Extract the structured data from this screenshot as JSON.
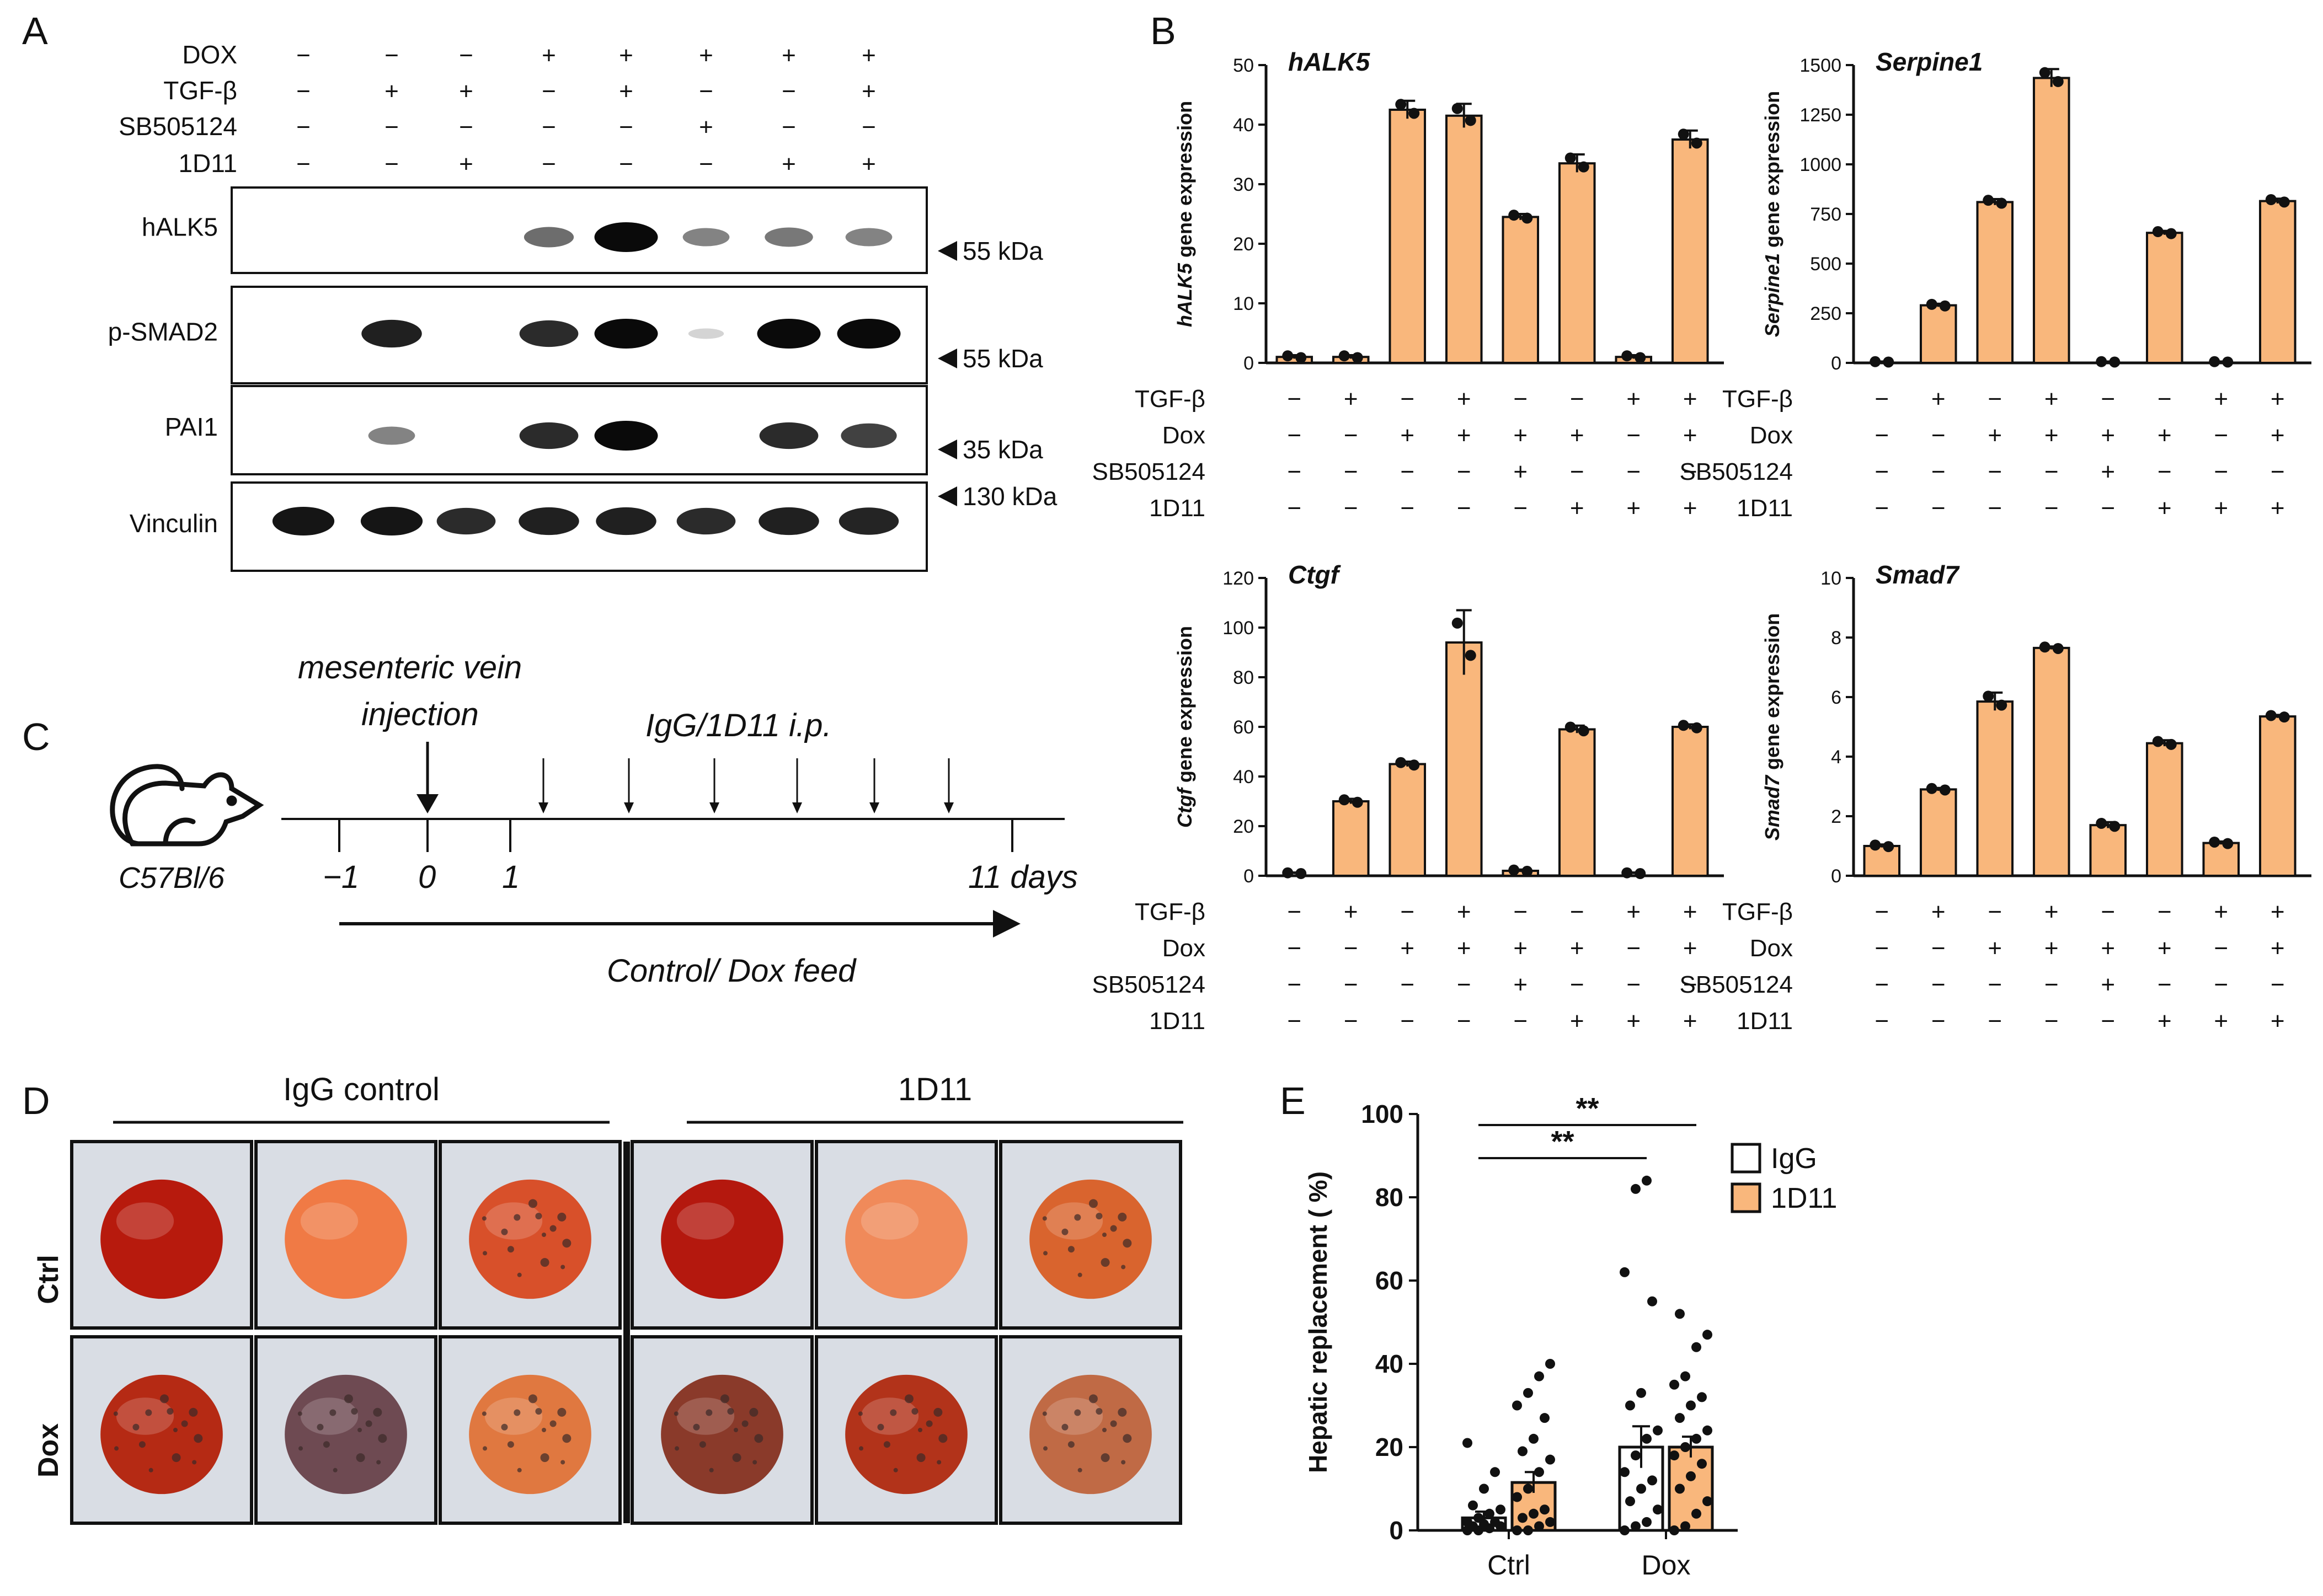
{
  "panels": {
    "A": "A",
    "B": "B",
    "C": "C",
    "D": "D",
    "E": "E"
  },
  "western": {
    "conditions": [
      {
        "name": "DOX",
        "values": [
          "−",
          "−",
          "−",
          "+",
          "+",
          "+",
          "+",
          "+"
        ]
      },
      {
        "name": "TGF-β",
        "values": [
          "−",
          "+",
          "+",
          "−",
          "+",
          "−",
          "−",
          "+"
        ]
      },
      {
        "name": "SB505124",
        "values": [
          "−",
          "−",
          "−",
          "−",
          "−",
          "+",
          "−",
          "−"
        ]
      },
      {
        "name": "1D11",
        "values": [
          "−",
          "−",
          "+",
          "−",
          "−",
          "−",
          "+",
          "+"
        ]
      }
    ],
    "blots": [
      {
        "name": "hALK5",
        "marker": "55 kDa",
        "intensity": [
          0,
          0,
          0,
          0.55,
          1,
          0.45,
          0.5,
          0.45
        ]
      },
      {
        "name": "p-SMAD2",
        "marker": "55 kDa",
        "intensity": [
          0,
          0.9,
          0,
          0.85,
          1,
          0.08,
          1,
          1
        ]
      },
      {
        "name": "PAI1",
        "marker": "35 kDa",
        "intensity": [
          0,
          0.45,
          0,
          0.85,
          1,
          0,
          0.85,
          0.75
        ]
      },
      {
        "name": "Vinculin",
        "marker": "130 kDa",
        "intensity": [
          0.95,
          0.95,
          0.85,
          0.9,
          0.9,
          0.85,
          0.9,
          0.88
        ]
      }
    ]
  },
  "chart_data": [
    {
      "type": "bar",
      "title": "hALK5",
      "ylabel_italic": "hALK5",
      "ylabel_rest": " gene expression",
      "ylim": [
        0,
        50
      ],
      "yticks": [
        0,
        10,
        20,
        30,
        40,
        50
      ],
      "values": [
        1,
        1,
        42.5,
        41.5,
        24.5,
        33.5,
        1,
        37.5
      ],
      "errors": [
        0.3,
        0.3,
        1.5,
        2,
        0.5,
        1.5,
        0.3,
        1.5
      ],
      "conditions": [
        {
          "name": "TGF-β",
          "values": [
            "−",
            "+",
            "−",
            "+",
            "−",
            "−",
            "+",
            "+"
          ]
        },
        {
          "name": "Dox",
          "values": [
            "−",
            "−",
            "+",
            "+",
            "+",
            "+",
            "−",
            "+"
          ]
        },
        {
          "name": "SB505124",
          "values": [
            "−",
            "−",
            "−",
            "−",
            "+",
            "−",
            "−",
            "−"
          ]
        },
        {
          "name": "1D11",
          "values": [
            "−",
            "−",
            "−",
            "−",
            "−",
            "+",
            "+",
            "+"
          ]
        }
      ]
    },
    {
      "type": "bar",
      "title": "Serpine1",
      "ylabel_italic": "Serpine1",
      "ylabel_rest": " gene expression",
      "ylim": [
        0,
        1500
      ],
      "yticks": [
        0,
        250,
        500,
        750,
        1000,
        1250,
        1500
      ],
      "values": [
        5,
        290,
        810,
        1435,
        5,
        655,
        5,
        815
      ],
      "errors": [
        2,
        8,
        15,
        45,
        2,
        10,
        2,
        12
      ],
      "conditions": [
        {
          "name": "TGF-β",
          "values": [
            "−",
            "+",
            "−",
            "+",
            "−",
            "−",
            "+",
            "+"
          ]
        },
        {
          "name": "Dox",
          "values": [
            "−",
            "−",
            "+",
            "+",
            "+",
            "+",
            "−",
            "+"
          ]
        },
        {
          "name": "SB505124",
          "values": [
            "−",
            "−",
            "−",
            "−",
            "+",
            "−",
            "−",
            "−"
          ]
        },
        {
          "name": "1D11",
          "values": [
            "−",
            "−",
            "−",
            "−",
            "−",
            "+",
            "+",
            "+"
          ]
        }
      ]
    },
    {
      "type": "bar",
      "title": "Ctgf",
      "ylabel_italic": "Ctgf",
      "ylabel_rest": " gene expression",
      "ylim": [
        0,
        120
      ],
      "yticks": [
        0,
        20,
        40,
        60,
        80,
        100,
        120
      ],
      "values": [
        1,
        30,
        45,
        94,
        2,
        59,
        1,
        60
      ],
      "errors": [
        0.3,
        1,
        1,
        13,
        0.5,
        1.5,
        0.3,
        1
      ],
      "conditions": [
        {
          "name": "TGF-β",
          "values": [
            "−",
            "+",
            "−",
            "+",
            "−",
            "−",
            "+",
            "+"
          ]
        },
        {
          "name": "Dox",
          "values": [
            "−",
            "−",
            "+",
            "+",
            "+",
            "+",
            "−",
            "+"
          ]
        },
        {
          "name": "SB505124",
          "values": [
            "−",
            "−",
            "−",
            "−",
            "+",
            "−",
            "−",
            "−"
          ]
        },
        {
          "name": "1D11",
          "values": [
            "−",
            "−",
            "−",
            "−",
            "−",
            "+",
            "+",
            "+"
          ]
        }
      ]
    },
    {
      "type": "bar",
      "title": "Smad7",
      "ylabel_italic": "Smad7",
      "ylabel_rest": " gene expression",
      "ylim": [
        0,
        10
      ],
      "yticks": [
        0,
        2,
        4,
        6,
        8,
        10
      ],
      "values": [
        1,
        2.9,
        5.85,
        7.65,
        1.7,
        4.45,
        1.1,
        5.35
      ],
      "errors": [
        0.05,
        0.05,
        0.3,
        0.05,
        0.1,
        0.1,
        0.05,
        0.05
      ],
      "conditions": [
        {
          "name": "TGF-β",
          "values": [
            "−",
            "+",
            "−",
            "+",
            "−",
            "−",
            "+",
            "+"
          ]
        },
        {
          "name": "Dox",
          "values": [
            "−",
            "−",
            "+",
            "+",
            "+",
            "+",
            "−",
            "+"
          ]
        },
        {
          "name": "SB505124",
          "values": [
            "−",
            "−",
            "−",
            "−",
            "+",
            "−",
            "−",
            "−"
          ]
        },
        {
          "name": "1D11",
          "values": [
            "−",
            "−",
            "−",
            "−",
            "−",
            "+",
            "+",
            "+"
          ]
        }
      ]
    },
    {
      "type": "bar",
      "ylabel": "Hepatic replacement ( %)",
      "ylim": [
        0,
        100
      ],
      "yticks": [
        0,
        20,
        40,
        60,
        80,
        100
      ],
      "categories": [
        "Ctrl",
        "Dox"
      ],
      "series": [
        {
          "name": "IgG",
          "color": "#ffffff",
          "values": [
            3,
            20
          ],
          "errors": [
            1.5,
            5
          ]
        },
        {
          "name": "1D11",
          "color": "#f9b77c",
          "values": [
            11.5,
            20
          ],
          "errors": [
            2.5,
            2.5
          ]
        }
      ],
      "points": {
        "Ctrl-IgG": [
          0,
          0,
          0.5,
          1,
          1,
          1.5,
          2,
          2,
          3,
          4,
          5,
          6,
          10,
          14,
          21
        ],
        "Ctrl-1D11": [
          0,
          0,
          1,
          2,
          3,
          4,
          5,
          8,
          10,
          14,
          17,
          19,
          22,
          27,
          30,
          33,
          37,
          40
        ],
        "Dox-IgG": [
          0,
          1,
          2,
          5,
          7,
          10,
          12,
          14,
          18,
          22,
          24,
          30,
          33,
          55,
          62,
          82,
          84
        ],
        "Dox-1D11": [
          0,
          1,
          4,
          7,
          10,
          13,
          16,
          18,
          20,
          22,
          24,
          27,
          30,
          32,
          35,
          37,
          44,
          47,
          52
        ]
      },
      "significance": [
        {
          "label": "**",
          "from": "Ctrl-IgG",
          "to": "Dox-IgG"
        },
        {
          "label": "**",
          "from": "Ctrl-IgG",
          "to": "Dox-1D11"
        }
      ]
    }
  ],
  "timeline": {
    "host": "C57Bl/6",
    "injection": "mesenteric vein",
    "injection2": "injection",
    "treatment": "IgG/1D11 i.p.",
    "ticks": [
      "−1",
      "0",
      "1",
      "11 days"
    ],
    "feed": "Control/ Dox feed"
  },
  "livers": {
    "groups": [
      "IgG control",
      "1D11"
    ],
    "rows": [
      "Ctrl",
      "Dox"
    ],
    "tiles": [
      [
        "#b71a0d",
        "#f07a45",
        "#d8502a",
        "#b4180e",
        "#f08a5a",
        "#d9642e"
      ],
      [
        "#b52a14",
        "#6e4a52",
        "#e07840",
        "#8a3a2a",
        "#b2331a",
        "#c06a45"
      ]
    ]
  },
  "colors": {
    "bar": "#f9b77c",
    "edge": "#111111"
  }
}
